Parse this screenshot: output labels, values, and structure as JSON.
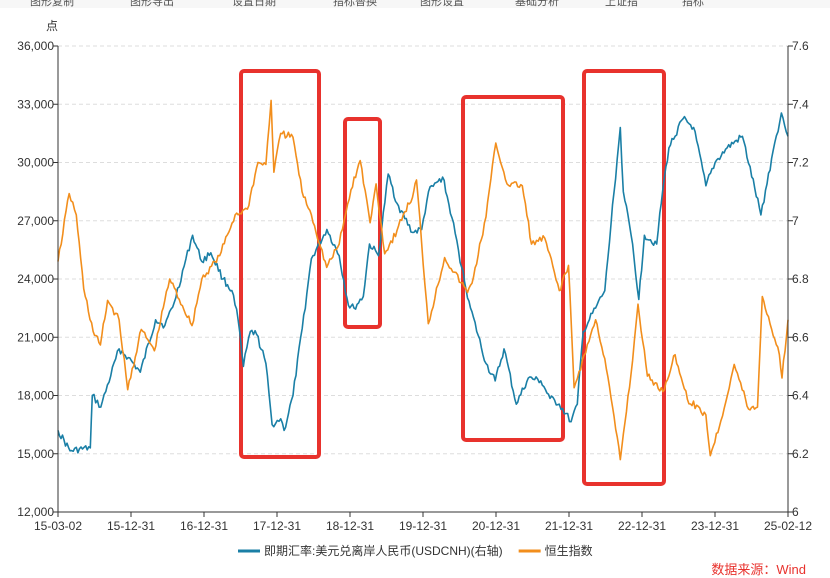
{
  "toolbar": {
    "items": [
      "图形复制",
      "图形导出",
      "设置日期",
      "指标替换",
      "图形设置",
      "基础分析",
      "上证指",
      "指标"
    ]
  },
  "source_text": "数据来源：Wind",
  "colors": {
    "left_series": "#F28E1C",
    "right_series": "#1A7FA6",
    "highlight_box": "#E8322D",
    "grid": "#dddddd",
    "axis": "#333333"
  },
  "chart_data": {
    "type": "line",
    "y_unit_label": "点",
    "x_tick_labels": [
      "15-03-02",
      "15-12-31",
      "16-12-31",
      "17-12-31",
      "18-12-31",
      "19-12-31",
      "20-12-31",
      "21-12-31",
      "22-12-31",
      "23-12-31",
      "25-02-12"
    ],
    "x_range": [
      "2015-03-02",
      "2025-02-12"
    ],
    "y_left": {
      "range": [
        12000,
        36000
      ],
      "ticks": [
        12000,
        15000,
        18000,
        21000,
        24000,
        27000,
        30000,
        33000,
        36000
      ],
      "tick_labels": [
        "12,000",
        "15,000",
        "18,000",
        "21,000",
        "24,000",
        "27,000",
        "30,000",
        "33,000",
        "36,000"
      ]
    },
    "y_right": {
      "range": [
        6.0,
        7.6
      ],
      "ticks": [
        6.0,
        6.2,
        6.4,
        6.6,
        6.8,
        7.0,
        7.2,
        7.4,
        7.6
      ],
      "tick_labels": [
        "6",
        "6.2",
        "6.4",
        "6.6",
        "6.8",
        "7",
        "7.2",
        "7.4",
        "7.6"
      ]
    },
    "legend_position": "bottom",
    "series": [
      {
        "name": "即期汇率:美元兑离岸人民币(USDCNH)(右轴)",
        "axis": "right",
        "color": "#1A7FA6",
        "points": [
          [
            "2015-03-02",
            6.28
          ],
          [
            "2015-05-01",
            6.21
          ],
          [
            "2015-08-10",
            6.22
          ],
          [
            "2015-08-20",
            6.4
          ],
          [
            "2015-10-01",
            6.36
          ],
          [
            "2015-12-31",
            6.56
          ],
          [
            "2016-02-15",
            6.53
          ],
          [
            "2016-04-15",
            6.48
          ],
          [
            "2016-06-30",
            6.66
          ],
          [
            "2016-08-15",
            6.64
          ],
          [
            "2016-10-01",
            6.72
          ],
          [
            "2016-12-31",
            6.95
          ],
          [
            "2017-02-15",
            6.86
          ],
          [
            "2017-04-01",
            6.89
          ],
          [
            "2017-06-01",
            6.8
          ],
          [
            "2017-07-15",
            6.76
          ],
          [
            "2017-08-15",
            6.66
          ],
          [
            "2017-09-10",
            6.5
          ],
          [
            "2017-10-15",
            6.62
          ],
          [
            "2017-11-15",
            6.61
          ],
          [
            "2017-12-31",
            6.51
          ],
          [
            "2018-01-31",
            6.3
          ],
          [
            "2018-03-15",
            6.32
          ],
          [
            "2018-04-01",
            6.28
          ],
          [
            "2018-05-15",
            6.4
          ],
          [
            "2018-06-30",
            6.63
          ],
          [
            "2018-08-15",
            6.87
          ],
          [
            "2018-10-31",
            6.97
          ],
          [
            "2018-12-31",
            6.88
          ],
          [
            "2019-02-15",
            6.71
          ],
          [
            "2019-03-15",
            6.7
          ],
          [
            "2019-04-30",
            6.74
          ],
          [
            "2019-05-31",
            6.92
          ],
          [
            "2019-07-15",
            6.88
          ],
          [
            "2019-09-01",
            7.16
          ],
          [
            "2019-10-15",
            7.06
          ],
          [
            "2019-12-31",
            6.96
          ],
          [
            "2020-02-15",
            6.97
          ],
          [
            "2020-03-20",
            7.1
          ],
          [
            "2020-05-29",
            7.15
          ],
          [
            "2020-07-15",
            7.01
          ],
          [
            "2020-09-01",
            6.84
          ],
          [
            "2020-10-15",
            6.7
          ],
          [
            "2020-12-31",
            6.51
          ],
          [
            "2021-02-15",
            6.45
          ],
          [
            "2021-03-31",
            6.56
          ],
          [
            "2021-05-31",
            6.37
          ],
          [
            "2021-07-30",
            6.46
          ],
          [
            "2021-09-30",
            6.45
          ],
          [
            "2021-11-15",
            6.39
          ],
          [
            "2021-12-31",
            6.37
          ],
          [
            "2022-02-28",
            6.31
          ],
          [
            "2022-03-31",
            6.37
          ],
          [
            "2022-04-29",
            6.62
          ],
          [
            "2022-06-30",
            6.7
          ],
          [
            "2022-08-15",
            6.76
          ],
          [
            "2022-09-30",
            7.1
          ],
          [
            "2022-10-31",
            7.32
          ],
          [
            "2022-11-15",
            7.1
          ],
          [
            "2022-12-31",
            6.92
          ],
          [
            "2023-01-31",
            6.73
          ],
          [
            "2023-02-28",
            6.95
          ],
          [
            "2023-04-30",
            6.92
          ],
          [
            "2023-05-31",
            7.11
          ],
          [
            "2023-06-30",
            7.25
          ],
          [
            "2023-09-08",
            7.35
          ],
          [
            "2023-10-31",
            7.32
          ],
          [
            "2023-12-31",
            7.12
          ],
          [
            "2024-02-15",
            7.2
          ],
          [
            "2024-04-15",
            7.25
          ],
          [
            "2024-06-30",
            7.29
          ],
          [
            "2024-09-30",
            7.02
          ],
          [
            "2024-11-30",
            7.24
          ],
          [
            "2025-01-10",
            7.37
          ],
          [
            "2025-02-12",
            7.29
          ]
        ]
      },
      {
        "name": "恒生指数",
        "axis": "left",
        "color": "#F28E1C",
        "points": [
          [
            "2015-03-02",
            24900
          ],
          [
            "2015-04-27",
            28400
          ],
          [
            "2015-06-01",
            27300
          ],
          [
            "2015-07-08",
            23500
          ],
          [
            "2015-08-24",
            21300
          ],
          [
            "2015-09-29",
            20600
          ],
          [
            "2015-11-04",
            22900
          ],
          [
            "2015-12-31",
            21900
          ],
          [
            "2016-02-12",
            18300
          ],
          [
            "2016-04-20",
            21400
          ],
          [
            "2016-06-24",
            20300
          ],
          [
            "2016-08-15",
            22900
          ],
          [
            "2016-09-08",
            24000
          ],
          [
            "2016-12-28",
            21600
          ],
          [
            "2017-02-15",
            24000
          ],
          [
            "2017-05-15",
            25200
          ],
          [
            "2017-07-31",
            27300
          ],
          [
            "2017-09-30",
            27600
          ],
          [
            "2017-11-22",
            30000
          ],
          [
            "2017-12-31",
            29900
          ],
          [
            "2018-01-26",
            33200
          ],
          [
            "2018-02-09",
            29500
          ],
          [
            "2018-03-15",
            31500
          ],
          [
            "2018-05-15",
            31300
          ],
          [
            "2018-06-29",
            28500
          ],
          [
            "2018-08-15",
            27300
          ],
          [
            "2018-10-30",
            24600
          ],
          [
            "2018-12-31",
            25800
          ],
          [
            "2019-02-28",
            28600
          ],
          [
            "2019-04-15",
            30100
          ],
          [
            "2019-06-03",
            26900
          ],
          [
            "2019-07-03",
            28900
          ],
          [
            "2019-08-15",
            25300
          ],
          [
            "2019-10-15",
            26500
          ],
          [
            "2019-11-15",
            27300
          ],
          [
            "2019-12-31",
            28200
          ],
          [
            "2020-01-20",
            29100
          ],
          [
            "2020-03-19",
            21700
          ],
          [
            "2020-06-08",
            25100
          ],
          [
            "2020-09-30",
            23300
          ],
          [
            "2020-10-30",
            24100
          ],
          [
            "2020-12-31",
            27200
          ],
          [
            "2021-02-18",
            31000
          ],
          [
            "2021-04-15",
            28900
          ],
          [
            "2021-06-30",
            28800
          ],
          [
            "2021-08-15",
            25800
          ],
          [
            "2021-10-20",
            26100
          ],
          [
            "2021-12-31",
            23400
          ],
          [
            "2022-02-15",
            24700
          ],
          [
            "2022-03-15",
            18400
          ],
          [
            "2022-06-30",
            21900
          ],
          [
            "2022-08-15",
            19900
          ],
          [
            "2022-10-31",
            14700
          ],
          [
            "2022-12-31",
            19800
          ],
          [
            "2023-01-27",
            22700
          ],
          [
            "2023-03-15",
            19000
          ],
          [
            "2023-05-31",
            18200
          ],
          [
            "2023-07-31",
            20100
          ],
          [
            "2023-09-30",
            17800
          ],
          [
            "2023-12-31",
            17000
          ],
          [
            "2024-01-22",
            14900
          ],
          [
            "2024-03-15",
            16700
          ],
          [
            "2024-05-20",
            19600
          ],
          [
            "2024-07-31",
            17300
          ],
          [
            "2024-09-13",
            17400
          ],
          [
            "2024-10-07",
            23100
          ],
          [
            "2024-12-31",
            20100
          ],
          [
            "2025-01-13",
            18900
          ],
          [
            "2025-02-12",
            21900
          ]
        ]
      }
    ]
  }
}
